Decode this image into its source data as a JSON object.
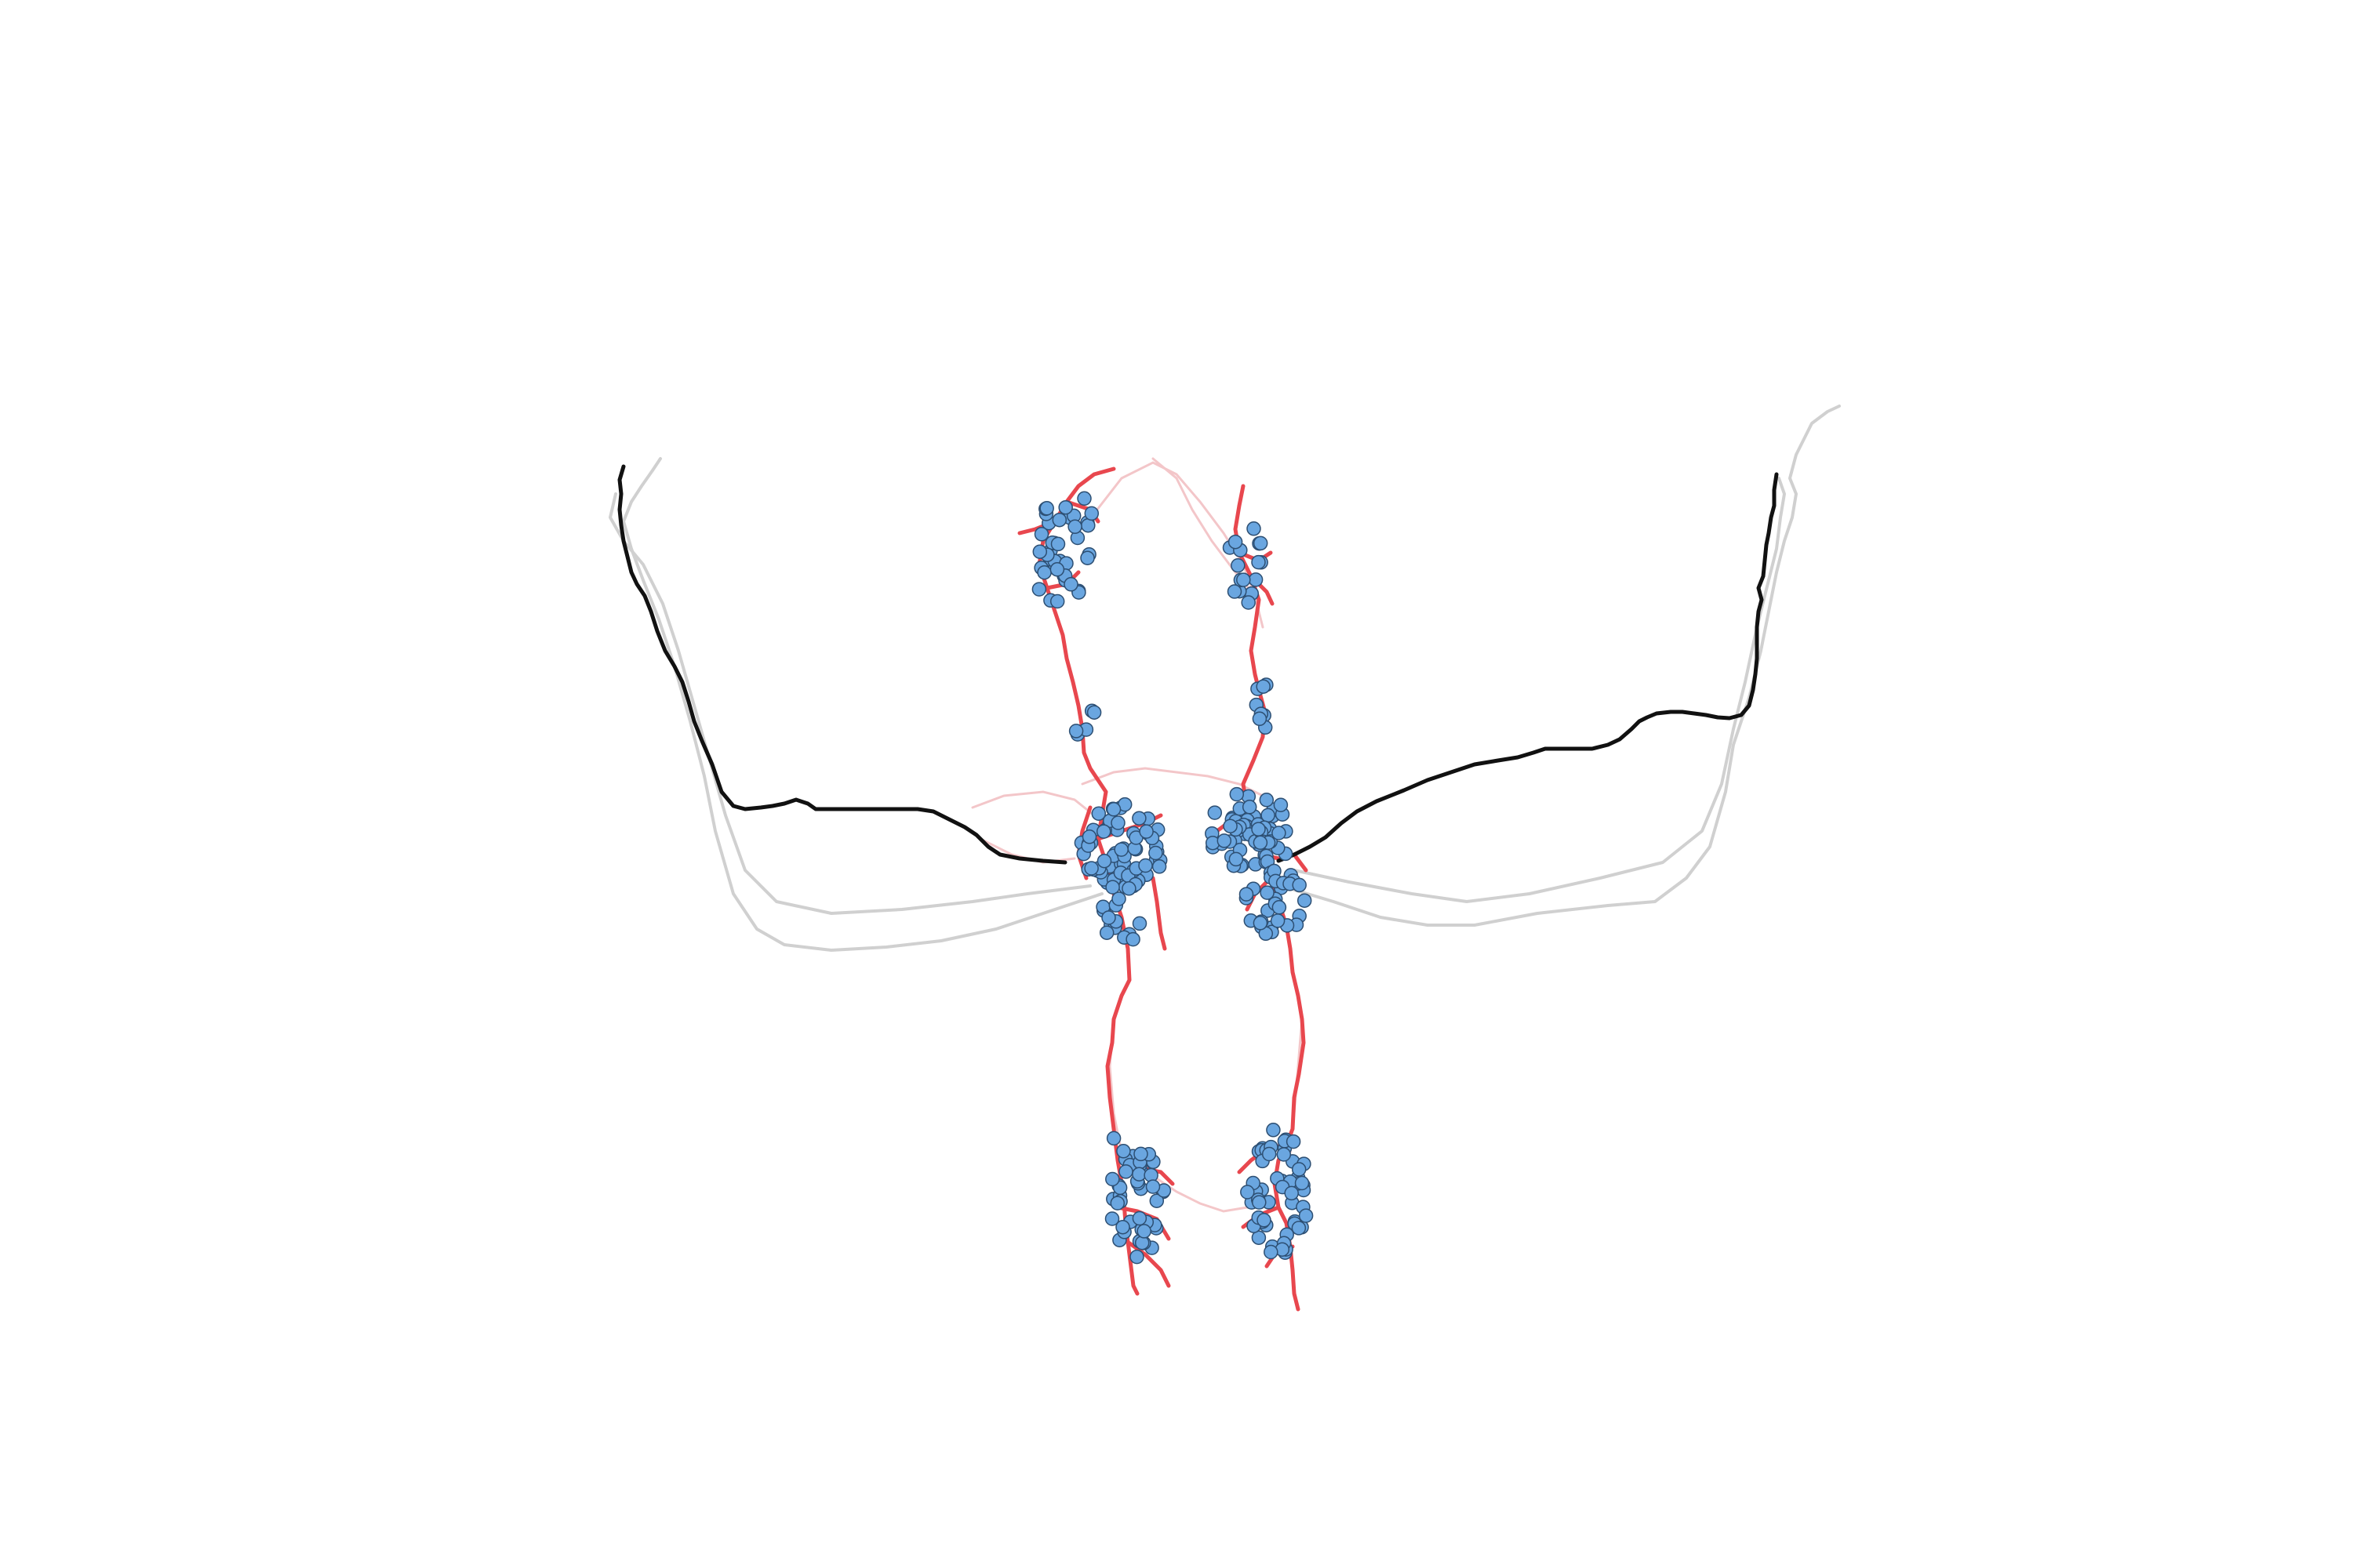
{
  "figure": {
    "background": "#ffffff",
    "colors": {
      "neurite": "#e8474e",
      "neurite_faint": "#f2b9bc",
      "synapse_fill": "#6aa6e0",
      "synapse_stroke": "#2d4f73",
      "axon_primary": "#000000",
      "axon_secondary": "#bdbdbd"
    },
    "elements": [
      "neuron-skeleton",
      "synapse-markers",
      "axon-tracts"
    ]
  }
}
